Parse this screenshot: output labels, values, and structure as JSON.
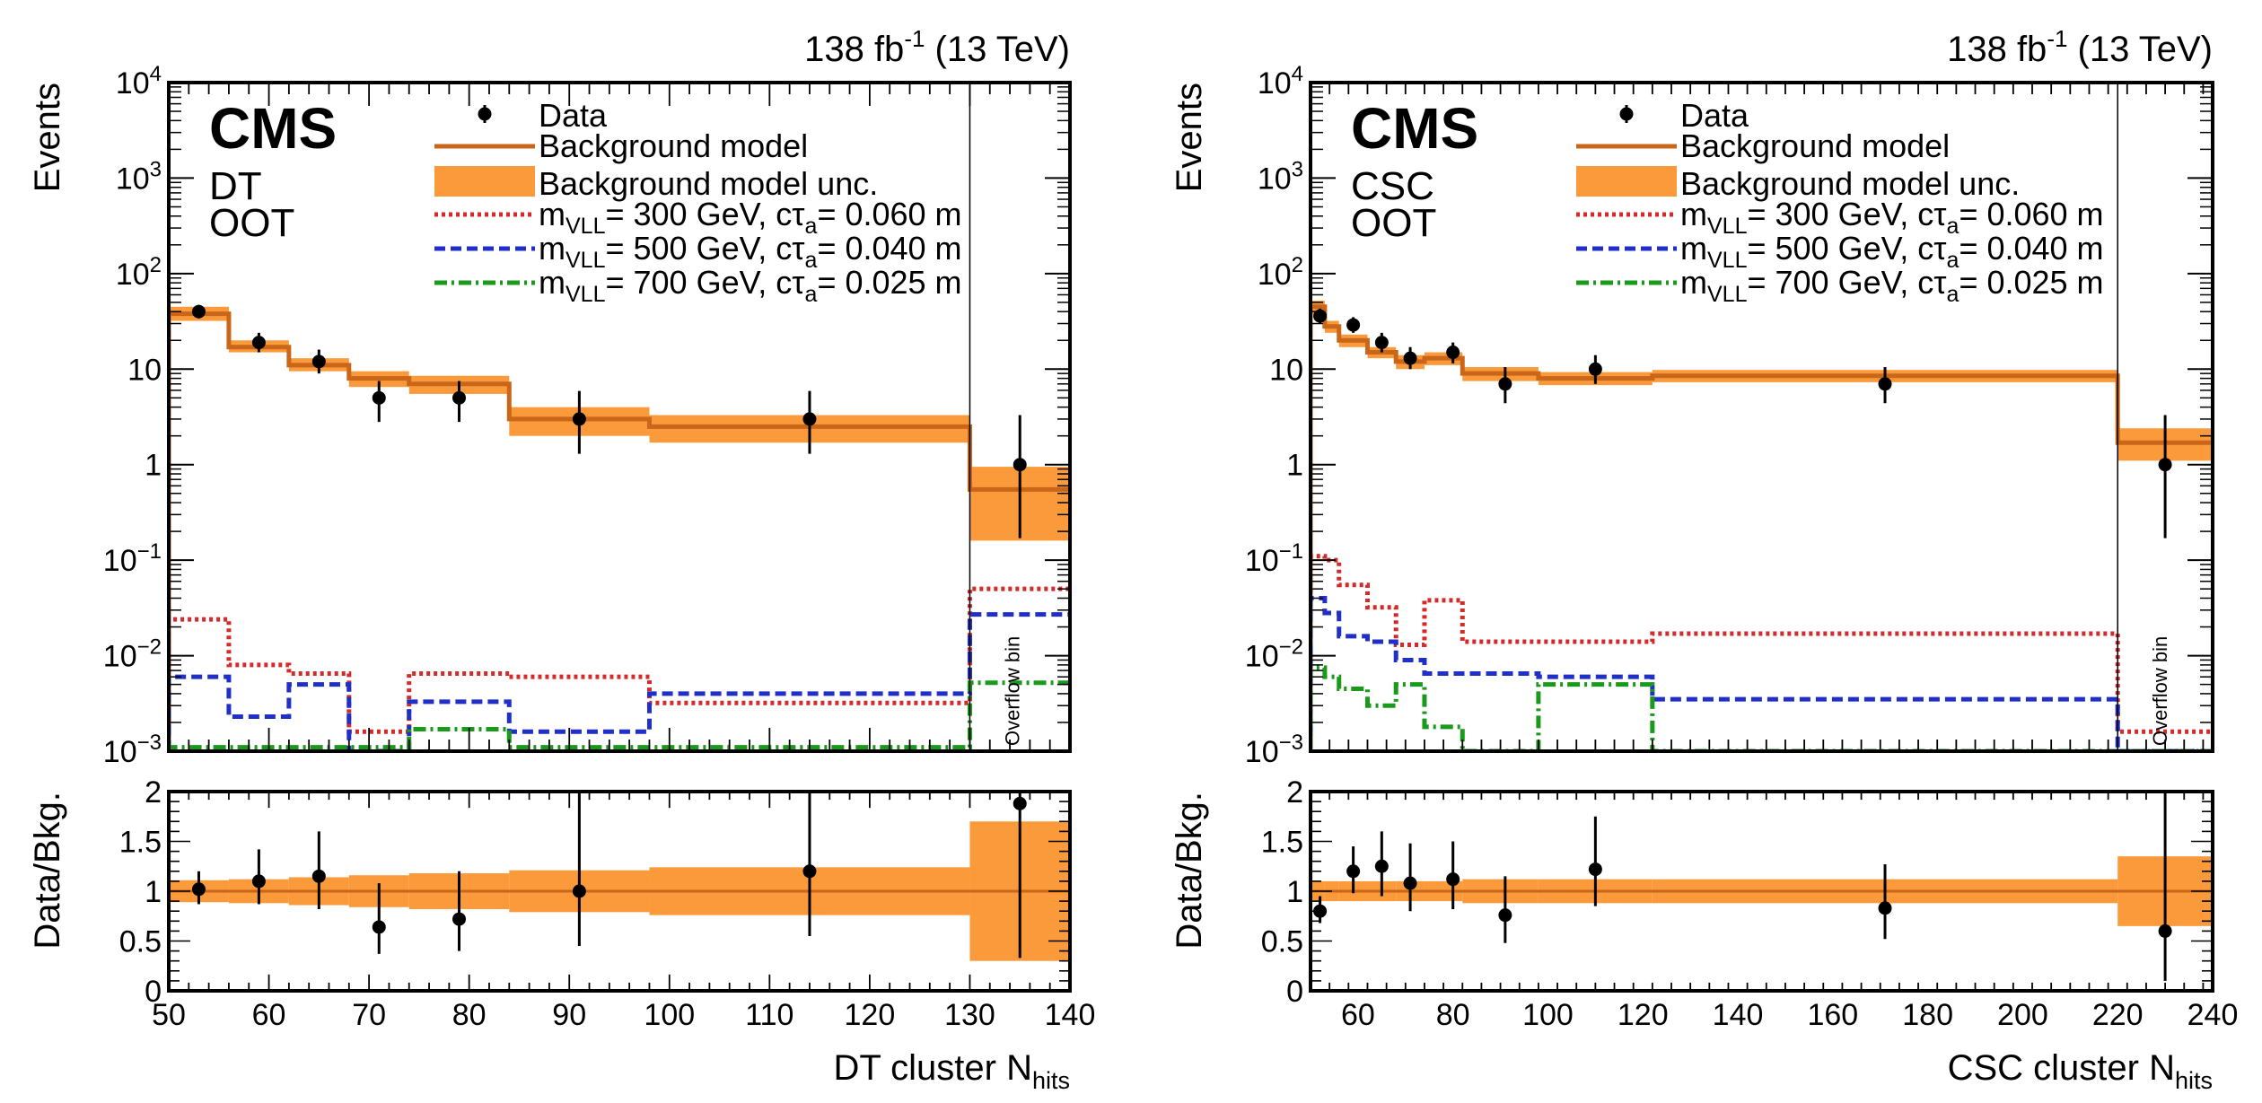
{
  "colors": {
    "background_line": "#c9661a",
    "background_band": "#fb9a3a",
    "sig300": "#d42a2a",
    "sig500": "#1f2fc8",
    "sig700": "#1a9a1a",
    "data": "#000000"
  },
  "legend": {
    "data": "Data",
    "bkg": "Background model",
    "bkg_unc": "Background model unc.",
    "sig300": {
      "main": "m",
      "sub": "VLL",
      "rest": "= 300 GeV, cτ",
      "sub2": "a",
      "rest2": "= 0.060 m"
    },
    "sig500": {
      "main": "m",
      "sub": "VLL",
      "rest": "= 500 GeV, cτ",
      "sub2": "a",
      "rest2": "= 0.040 m"
    },
    "sig700": {
      "main": "m",
      "sub": "VLL",
      "rest": "= 700 GeV, cτ",
      "sub2": "a",
      "rest2": "= 0.025 m"
    }
  },
  "common": {
    "cms": "CMS",
    "lumi": {
      "a": "138 fb",
      "sup": "-1",
      "b": " (13 TeV)"
    },
    "ylabel_top": "Events",
    "ylabel_bottom": "Data/Bkg.",
    "overflow": "Overflow bin",
    "ratio_ticks": [
      "0",
      "0.5",
      "1",
      "1.5",
      "2"
    ],
    "log_ticks": [
      {
        "p": -3,
        "base": "10",
        "exp": "−3"
      },
      {
        "p": -2,
        "base": "10",
        "exp": "−2"
      },
      {
        "p": -1,
        "base": "10",
        "exp": "−1"
      },
      {
        "p": 0,
        "base": "1",
        "exp": ""
      },
      {
        "p": 1,
        "base": "10",
        "exp": ""
      },
      {
        "p": 2,
        "base": "10",
        "exp": "2"
      },
      {
        "p": 3,
        "base": "10",
        "exp": "3"
      },
      {
        "p": 4,
        "base": "10",
        "exp": "4"
      }
    ]
  },
  "chart_data": [
    {
      "type": "histogram",
      "label1": "DT",
      "label2": "OOT",
      "xlabel": {
        "main": "DT cluster N",
        "sub": "hits"
      },
      "xlim": [
        50,
        140
      ],
      "ylim": [
        0.001,
        10000
      ],
      "ratio_ylim": [
        0,
        2
      ],
      "xticks": [
        50,
        60,
        70,
        80,
        90,
        100,
        110,
        120,
        130,
        140
      ],
      "overflow_edge": 130,
      "bins": [
        50,
        56,
        62,
        68,
        74,
        84,
        98,
        130,
        140
      ],
      "background": [
        38,
        17,
        11,
        8,
        7,
        3,
        2.5,
        0.55
      ],
      "background_unc_low": [
        32,
        15,
        9.5,
        6.5,
        5.5,
        2.0,
        1.7,
        0.16
      ],
      "background_unc_high": [
        45,
        20,
        13,
        9.5,
        8.5,
        4.0,
        3.3,
        0.95
      ],
      "signals": [
        {
          "key": "sig300",
          "values": [
            0.024,
            0.008,
            0.0065,
            0.0016,
            0.0065,
            0.006,
            0.0032,
            0.05
          ]
        },
        {
          "key": "sig500",
          "values": [
            0.006,
            0.0023,
            0.005,
            0.0009,
            0.0033,
            0.0016,
            0.004,
            0.027
          ]
        },
        {
          "key": "sig700",
          "values": [
            0.0011,
            0.0011,
            0.0011,
            0.0011,
            0.0017,
            0.0011,
            0.0011,
            0.0052
          ]
        }
      ],
      "data_points": [
        {
          "x": 53,
          "y": 40,
          "lo": 34,
          "hi": 47
        },
        {
          "x": 59,
          "y": 19,
          "lo": 15,
          "hi": 24
        },
        {
          "x": 65,
          "y": 12,
          "lo": 9,
          "hi": 16
        },
        {
          "x": 71,
          "y": 5,
          "lo": 2.8,
          "hi": 7.5
        },
        {
          "x": 79,
          "y": 5,
          "lo": 2.8,
          "hi": 7.5
        },
        {
          "x": 91,
          "y": 3,
          "lo": 1.3,
          "hi": 5.9
        },
        {
          "x": 114,
          "y": 3,
          "lo": 1.3,
          "hi": 5.9
        },
        {
          "x": 135,
          "y": 1,
          "lo": 0.17,
          "hi": 3.3
        }
      ],
      "ratio_points": [
        {
          "x": 53,
          "y": 1.02,
          "lo": 0.87,
          "hi": 1.2
        },
        {
          "x": 59,
          "y": 1.1,
          "lo": 0.87,
          "hi": 1.42
        },
        {
          "x": 65,
          "y": 1.15,
          "lo": 0.82,
          "hi": 1.6
        },
        {
          "x": 71,
          "y": 0.64,
          "lo": 0.37,
          "hi": 1.08
        },
        {
          "x": 79,
          "y": 0.72,
          "lo": 0.4,
          "hi": 1.2
        },
        {
          "x": 91,
          "y": 1.0,
          "lo": 0.45,
          "hi": 2.0
        },
        {
          "x": 114,
          "y": 1.2,
          "lo": 0.55,
          "hi": 2.0
        },
        {
          "x": 135,
          "y": 1.88,
          "lo": 0.33,
          "hi": 2.0
        }
      ],
      "ratio_unc_half": [
        0.11,
        0.12,
        0.14,
        0.16,
        0.18,
        0.21,
        0.24,
        0.7
      ]
    },
    {
      "type": "histogram",
      "label1": "CSC",
      "label2": "OOT",
      "xlabel": {
        "main": "CSC cluster N",
        "sub": "hits"
      },
      "xlim": [
        50,
        240
      ],
      "ylim": [
        0.001,
        10000
      ],
      "ratio_ylim": [
        0,
        2
      ],
      "xticks": [
        60,
        80,
        100,
        120,
        140,
        160,
        180,
        200,
        220,
        240
      ],
      "overflow_edge": 220,
      "bins": [
        50,
        53,
        56,
        62,
        68,
        74,
        82,
        98,
        122,
        220,
        240
      ],
      "background": [
        45,
        28,
        20,
        15,
        12,
        13,
        9,
        8,
        8.5,
        1.7
      ],
      "background_unc_low": [
        38,
        24,
        17,
        13,
        10,
        11,
        7.5,
        6.8,
        7.3,
        1.1
      ],
      "background_unc_high": [
        52,
        32,
        23,
        17,
        14,
        15,
        10.5,
        9.3,
        9.8,
        2.4
      ],
      "signals": [
        {
          "key": "sig300",
          "values": [
            0.11,
            0.1,
            0.055,
            0.032,
            0.013,
            0.038,
            0.014,
            0.014,
            0.017,
            0.0016
          ]
        },
        {
          "key": "sig500",
          "values": [
            0.04,
            0.028,
            0.016,
            0.014,
            0.009,
            0.0065,
            0.0065,
            0.006,
            0.0035,
            0.0009
          ]
        },
        {
          "key": "sig700",
          "values": [
            0.0075,
            0.006,
            0.0045,
            0.003,
            0.005,
            0.0018,
            0.0009,
            0.005,
            0.0009,
            0.0009
          ]
        }
      ],
      "data_points": [
        {
          "x": 52,
          "y": 36,
          "lo": 30,
          "hi": 43
        },
        {
          "x": 59,
          "y": 29,
          "lo": 24,
          "hi": 35
        },
        {
          "x": 65,
          "y": 19,
          "lo": 15,
          "hi": 24
        },
        {
          "x": 71,
          "y": 13,
          "lo": 10,
          "hi": 17
        },
        {
          "x": 80,
          "y": 15,
          "lo": 11.5,
          "hi": 19
        },
        {
          "x": 91,
          "y": 7,
          "lo": 4.4,
          "hi": 10.5
        },
        {
          "x": 110,
          "y": 10,
          "lo": 7,
          "hi": 14
        },
        {
          "x": 171,
          "y": 7,
          "lo": 4.4,
          "hi": 10.5
        },
        {
          "x": 230,
          "y": 1,
          "lo": 0.17,
          "hi": 3.3
        }
      ],
      "ratio_points": [
        {
          "x": 52,
          "y": 0.8,
          "lo": 0.68,
          "hi": 0.95
        },
        {
          "x": 59,
          "y": 1.2,
          "lo": 0.98,
          "hi": 1.45
        },
        {
          "x": 65,
          "y": 1.25,
          "lo": 0.95,
          "hi": 1.6
        },
        {
          "x": 71,
          "y": 1.08,
          "lo": 0.8,
          "hi": 1.48
        },
        {
          "x": 80,
          "y": 1.12,
          "lo": 0.82,
          "hi": 1.5
        },
        {
          "x": 91,
          "y": 0.76,
          "lo": 0.48,
          "hi": 1.15
        },
        {
          "x": 110,
          "y": 1.22,
          "lo": 0.85,
          "hi": 1.75
        },
        {
          "x": 171,
          "y": 0.83,
          "lo": 0.52,
          "hi": 1.27
        },
        {
          "x": 230,
          "y": 0.6,
          "lo": 0.1,
          "hi": 2.0
        }
      ],
      "ratio_unc_half": [
        0.1,
        0.1,
        0.1,
        0.1,
        0.1,
        0.1,
        0.12,
        0.12,
        0.12,
        0.35
      ]
    }
  ]
}
